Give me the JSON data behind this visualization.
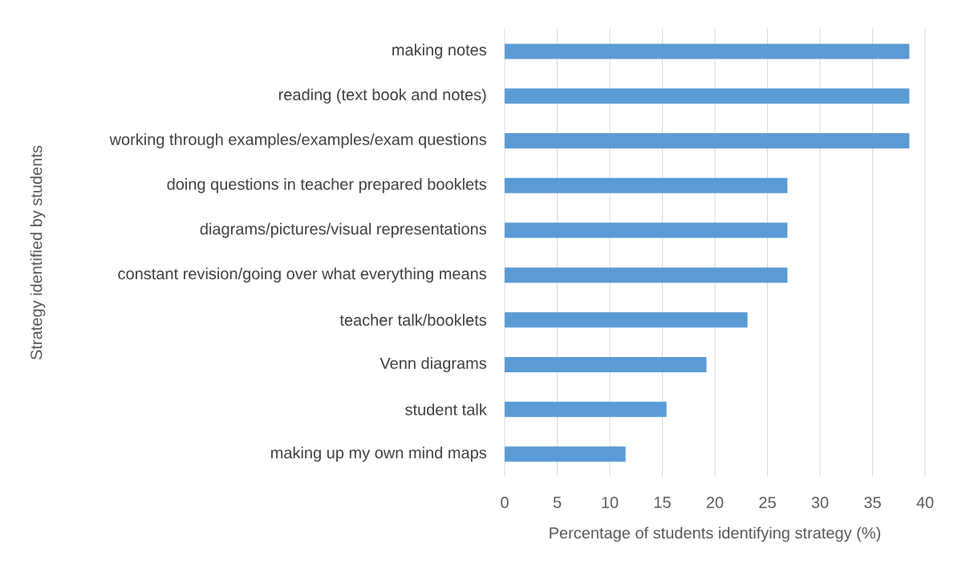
{
  "chart_data": {
    "type": "bar",
    "orientation": "horizontal",
    "categories": [
      "making notes",
      "reading (text book and notes)",
      "working through examples/examples/exam questions",
      "doing questions in teacher prepared booklets",
      "diagrams/pictures/visual representations",
      "constant revision/going over what everything means",
      "teacher talk/booklets",
      "Venn diagrams",
      "student talk",
      "making up my own mind maps"
    ],
    "values": [
      38.5,
      38.5,
      38.5,
      26.9,
      26.9,
      26.9,
      23.1,
      19.2,
      15.4,
      11.5
    ],
    "color": "#5b9bd5",
    "xlim": [
      0,
      40
    ],
    "xticks": [
      0,
      5,
      10,
      15,
      20,
      25,
      30,
      35,
      40
    ],
    "xlabel": "Percentage of students identifying strategy (%)",
    "ylabel": "Strategy identified by students",
    "grid": "x"
  }
}
